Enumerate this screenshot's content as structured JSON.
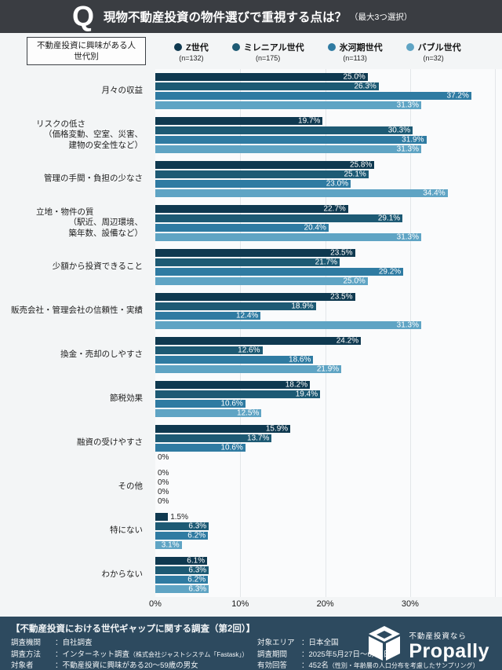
{
  "header": {
    "q": "Q",
    "title": "現物不動産投資の物件選びで重視する点は？",
    "title_suffix": "（最大3つ選択）"
  },
  "legend": {
    "box_lines": [
      "不動産投資に興味がある人",
      "世代別"
    ],
    "items": [
      {
        "name": "Z世代",
        "n": "(n=132)",
        "color": "#0f3950"
      },
      {
        "name": "ミレニアル世代",
        "n": "(n=175)",
        "color": "#1d5a74"
      },
      {
        "name": "氷河期世代",
        "n": "(n=113)",
        "color": "#2f7ba2"
      },
      {
        "name": "バブル世代",
        "n": "(n=32)",
        "color": "#5fa4c4"
      }
    ]
  },
  "chart_data": {
    "type": "bar",
    "orientation": "horizontal",
    "title": "現物不動産投資の物件選びで重視する点は？（最大3つ選択）",
    "xlabel": "",
    "ylabel": "",
    "xlim": [
      0,
      41
    ],
    "x_ticks": [
      "0%",
      "10%",
      "20%",
      "30%"
    ],
    "grid": true,
    "legend_position": "top",
    "value_label_format": "0.0%",
    "categories": [
      [
        "月々の収益"
      ],
      [
        "リスクの低さ",
        "（価格変動、空室、災害、",
        "建物の安全性など）"
      ],
      [
        "管理の手間・負担の少なさ"
      ],
      [
        "立地・物件の質",
        "（駅近、周辺環境、",
        "築年数、設備など）"
      ],
      [
        "少額から投資できること"
      ],
      [
        "販売会社・管理会社の信頼性・実績"
      ],
      [
        "換金・売却のしやすさ"
      ],
      [
        "節税効果"
      ],
      [
        "融資の受けやすさ"
      ],
      [
        "その他"
      ],
      [
        "特にない"
      ],
      [
        "わからない"
      ]
    ],
    "series": [
      {
        "name": "Z世代",
        "n": "(n=132)",
        "color": "#0f3950",
        "values": [
          25.0,
          19.7,
          25.8,
          22.7,
          23.5,
          23.5,
          24.2,
          18.2,
          15.9,
          0,
          1.5,
          6.1
        ]
      },
      {
        "name": "ミレニアル世代",
        "n": "(n=175)",
        "color": "#1d5a74",
        "values": [
          26.3,
          30.3,
          25.1,
          29.1,
          21.7,
          18.9,
          12.6,
          19.4,
          13.7,
          0,
          6.3,
          6.3
        ]
      },
      {
        "name": "氷河期世代",
        "n": "(n=113)",
        "color": "#2f7ba2",
        "values": [
          37.2,
          31.9,
          23.0,
          20.4,
          29.2,
          12.4,
          18.6,
          10.6,
          10.6,
          0,
          6.2,
          6.2
        ]
      },
      {
        "name": "バブル世代",
        "n": "(n=32)",
        "color": "#5fa4c4",
        "values": [
          31.3,
          31.3,
          34.4,
          31.3,
          25.0,
          31.3,
          21.9,
          12.5,
          0,
          0,
          3.1,
          6.3
        ]
      }
    ]
  },
  "footer": {
    "title": "【不動産投資における世代ギャップに関する調査（第2回）】",
    "left": [
      {
        "k": "調査機関",
        "v": "：自社調査",
        "small": ""
      },
      {
        "k": "調査方法",
        "v": "：インターネット調査",
        "small": "（株式会社ジャストシステム「Fastask」）"
      },
      {
        "k": "対象者",
        "v": "：不動産投資に興味がある20～59歳の男女",
        "small": ""
      }
    ],
    "right": [
      {
        "k": "対象エリア",
        "v": "：日本全国",
        "small": ""
      },
      {
        "k": "調査期間",
        "v": "：2025年5月27日～6月1日",
        "small": ""
      },
      {
        "k": "有効回答",
        "v": "：452名",
        "small": "（性別・年齢層の人口分布を考慮したサンプリング）"
      }
    ],
    "logo": {
      "tagline": "不動産投資なら",
      "brand": "Propally"
    }
  }
}
